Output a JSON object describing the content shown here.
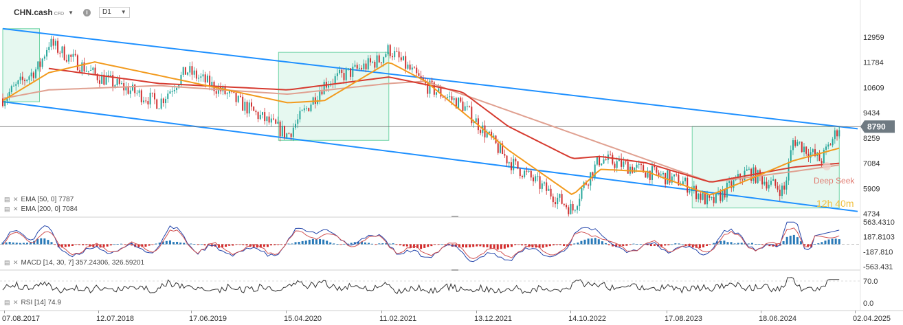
{
  "toolbar": {
    "symbol": "CHN.cash",
    "symbol_tag": "CFD",
    "symbol_dropdown_icon": "triangle-down",
    "info_icon": "i",
    "timeframe": "D1",
    "timeframe_dropdown_icon": "triangle-down"
  },
  "indicators": {
    "ema50": "EMA [50, 0]  7787",
    "ema200": "EMA [200, 0]  7084",
    "macd": "MACD [14, 30, 7]  357.24306,   326.59201",
    "rsi": "RSI [14]  74.9"
  },
  "annotations": {
    "deepseek": "Deep Seek",
    "countdown": "12h 40m"
  },
  "colors": {
    "price_up": "#26a69a",
    "price_down": "#d03030",
    "ema_fast": "#f29a1d",
    "ema_mid": "#d63a2f",
    "ema_slow": "#e0a090",
    "channel": "#1e90ff",
    "highlight_fill": "#e6f8f0",
    "highlight_border": "#6fd4a6",
    "macd_pos": "#2a7ab8",
    "macd_neg": "#d42a2a",
    "macd_line": "#2244aa",
    "signal_line": "#d05050",
    "rsi_line": "#333333",
    "last_price_bg": "#6f7a82"
  },
  "chart_data": [
    {
      "type": "candlestick",
      "title": "CHN.cash D1",
      "x_axis_labels": [
        "07.08.2017",
        "12.07.2018",
        "17.06.2019",
        "15.04.2020",
        "11.02.2021",
        "13.12.2021",
        "14.10.2022",
        "17.08.2023",
        "18.06.2024",
        "02.04.2025"
      ],
      "y_axis_labels": [
        "12959",
        "11784",
        "10609",
        "9434",
        "8259",
        "7084",
        "5909",
        "4734"
      ],
      "ylim": [
        4734,
        12959
      ],
      "last_price": "8790",
      "close_series": {
        "x": [
          "2017-08",
          "2017-12",
          "2018-01",
          "2018-06",
          "2019-01",
          "2019-04",
          "2019-08",
          "2020-03",
          "2020-07",
          "2021-01",
          "2021-02",
          "2021-06",
          "2021-10",
          "2022-03",
          "2022-10",
          "2022-11",
          "2023-01",
          "2023-06",
          "2023-10",
          "2024-01",
          "2024-05",
          "2024-09",
          "2024-10",
          "2025-01",
          "2025-03"
        ],
        "values": [
          10100,
          11600,
          12700,
          11200,
          9900,
          11400,
          10400,
          8400,
          10800,
          11900,
          12400,
          10700,
          9800,
          7200,
          4900,
          5900,
          7300,
          6700,
          6200,
          5200,
          6700,
          5800,
          8200,
          7200,
          8790
        ]
      },
      "ema_fast": {
        "x": [
          "2017-08",
          "2018-01",
          "2018-06",
          "2019-04",
          "2020-03",
          "2020-07",
          "2021-02",
          "2021-06",
          "2022-03",
          "2022-10",
          "2023-01",
          "2023-06",
          "2024-01",
          "2024-05",
          "2024-10",
          "2025-03"
        ],
        "values": [
          10000,
          11300,
          11800,
          10900,
          9900,
          10000,
          11800,
          10900,
          7700,
          5600,
          6800,
          6700,
          5600,
          6300,
          7200,
          7787
        ]
      },
      "ema_mid": {
        "x": [
          "2018-01",
          "2019-01",
          "2020-03",
          "2021-02",
          "2021-10",
          "2022-03",
          "2022-10",
          "2023-01",
          "2023-06",
          "2024-01",
          "2024-10",
          "2025-03"
        ],
        "values": [
          11500,
          10800,
          10500,
          11100,
          10400,
          8800,
          7300,
          7400,
          7100,
          6200,
          6900,
          7084
        ]
      },
      "ema_slow": {
        "x": [
          "2017-08",
          "2018-01",
          "2019-01",
          "2020-03",
          "2021-02",
          "2021-06",
          "2024-01",
          "2024-10",
          "2025-03"
        ],
        "values": [
          10100,
          10500,
          10700,
          10300,
          10800,
          10900,
          6200,
          6700,
          7000
        ]
      },
      "channel_upper": {
        "x": [
          "2017-08",
          "2025-03"
        ],
        "values": [
          13350,
          8790
        ]
      },
      "channel_lower": {
        "x": [
          "2017-08",
          "2025-03"
        ],
        "values": [
          9950,
          4950
        ]
      },
      "highlight_zones": [
        {
          "x": [
            "2017-08",
            "2017-12"
          ],
          "y": [
            9950,
            13350
          ]
        },
        {
          "x": [
            "2020-02",
            "2021-02"
          ],
          "y": [
            8150,
            12250
          ]
        },
        {
          "x": [
            "2023-11",
            "2025-03"
          ],
          "y": [
            5000,
            8800
          ]
        }
      ]
    },
    {
      "type": "bar",
      "title": "MACD [14, 30, 7]",
      "y_axis_labels": [
        "563.4310",
        "187.8103",
        "-187.810",
        "-563.431"
      ],
      "ylim": [
        -563.431,
        563.431
      ],
      "latest": {
        "macd": 357.24306,
        "signal": 326.59201
      }
    },
    {
      "type": "line",
      "title": "RSI [14]",
      "y_axis_labels": [
        "70.0",
        "0.0"
      ],
      "ylim": [
        0,
        100
      ],
      "latest": 74.9
    }
  ]
}
